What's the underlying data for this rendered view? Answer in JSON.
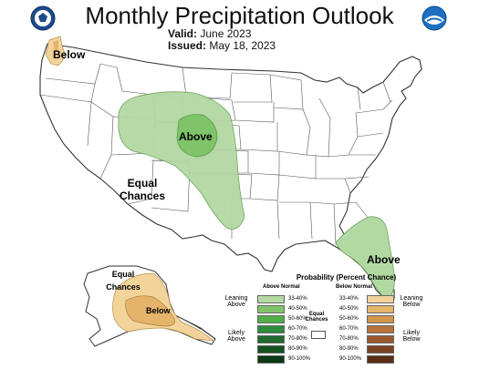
{
  "title": "Monthly Precipitation Outlook",
  "valid_label": "Valid:",
  "valid_value": "June 2023",
  "issued_label": "Issued:",
  "issued_value": "May 18, 2023",
  "map_labels": {
    "below_nw": "Below",
    "above_center": "Above",
    "equal_chances_line1": "Equal",
    "equal_chances_line2": "Chances",
    "above_se": "Above",
    "ak_equal_line1": "Equal",
    "ak_equal_line2": "Chances",
    "ak_below": "Below"
  },
  "logos": {
    "left": "NOAA/DOC seal",
    "right_text": "NOAA"
  },
  "legend": {
    "title": "Probability (Percent Chance)",
    "above_header": "Above Normal",
    "below_header": "Below Normal",
    "left_label_1a": "Leaning",
    "left_label_1b": "Above",
    "left_label_2a": "Likely",
    "left_label_2b": "Above",
    "right_label_1a": "Leaning",
    "right_label_1b": "Below",
    "right_label_2a": "Likely",
    "right_label_2b": "Below",
    "equal_a": "Equal",
    "equal_b": "Chances",
    "above_bins": [
      "33-40%",
      "40-50%",
      "50-60%",
      "60-70%",
      "70-80%",
      "80-90%",
      "90-100%"
    ],
    "below_bins": [
      "33-40%",
      "40-50%",
      "50-60%",
      "60-70%",
      "70-80%",
      "80-90%",
      "90-100%"
    ],
    "above_colors": [
      "#b3d9a3",
      "#80c46a",
      "#4fb043",
      "#2e8b3a",
      "#1f6b2e",
      "#155222",
      "#0c3a16"
    ],
    "below_colors": [
      "#f2d49b",
      "#e3b46a",
      "#d29448",
      "#b8723a",
      "#9a5a2c",
      "#7a4220",
      "#5a2e14"
    ]
  },
  "colors": {
    "above_light": "#b3d9a3",
    "above_mid": "#80c46a",
    "below_light": "#f2d49b",
    "below_mid": "#e3b46a"
  }
}
